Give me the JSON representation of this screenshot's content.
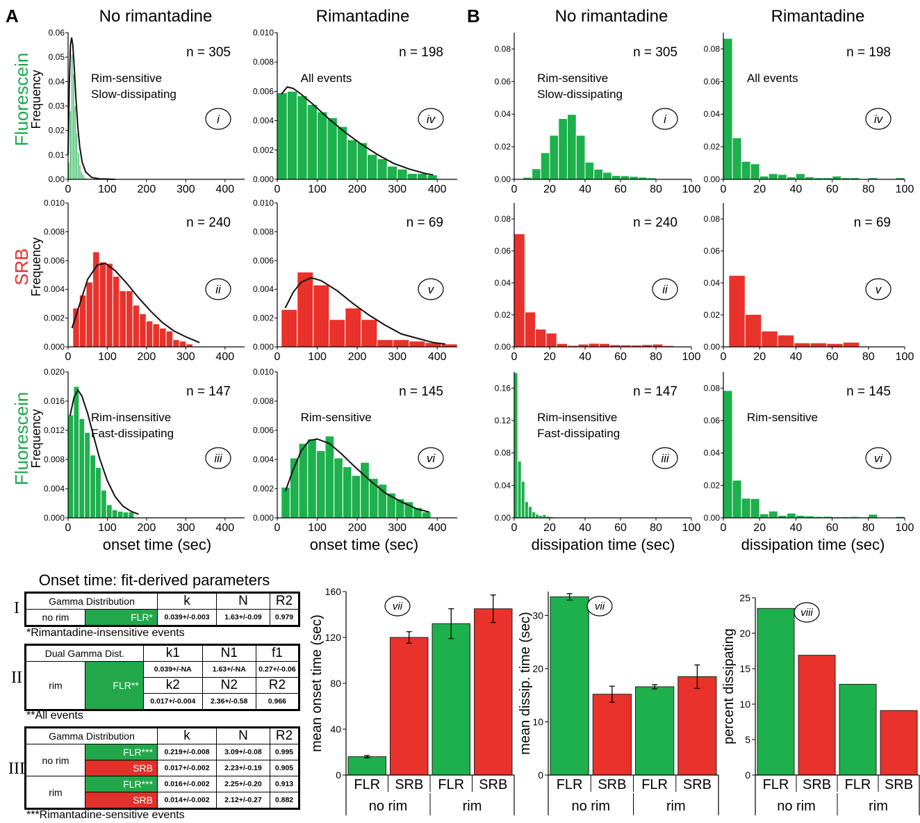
{
  "figure": {
    "panel_letters": [
      "A",
      "B"
    ],
    "column_headers": [
      "No rimantadine",
      "Rimantadine",
      "No rimantadine",
      "Rimantadine"
    ],
    "row_labels": [
      {
        "label": "Fluorescein",
        "color": "#1aa84a"
      },
      {
        "label": "SRB",
        "color": "#e0312a"
      },
      {
        "label": "Fluorescein",
        "color": "#1aa84a"
      }
    ],
    "frequency_label": "Frequency",
    "x_label_onset": "onset time (sec)",
    "x_label_dissipation": "dissipation time (sec)"
  },
  "colors": {
    "green": "#22a84a",
    "red": "#e0312a",
    "bar_green": "#1db04d",
    "bar_red": "#e8322b"
  },
  "chart_data": [
    {
      "type": "bar",
      "id": "A-i",
      "n": "n = 305",
      "roman": "i",
      "annotation": [
        "Rim-sensitive",
        "Slow-dissipating"
      ],
      "color": "green",
      "xlim": [
        0,
        450
      ],
      "xticks": [
        0,
        100,
        200,
        300,
        400
      ],
      "ylim": [
        0,
        0.06
      ],
      "yticks": [
        "0.00",
        "0.01",
        "0.02",
        "0.03",
        "0.04",
        "0.05",
        "0.06"
      ],
      "bin_start": 0,
      "bin_width": 4,
      "values": [
        0.007,
        0.028,
        0.051,
        0.043,
        0.03,
        0.019,
        0.011,
        0.006,
        0.003,
        0.002,
        0.001,
        0.0005
      ],
      "fit": [
        [
          0,
          0.01
        ],
        [
          3,
          0.038
        ],
        [
          6,
          0.055
        ],
        [
          9,
          0.058
        ],
        [
          12,
          0.055
        ],
        [
          16,
          0.045
        ],
        [
          20,
          0.033
        ],
        [
          25,
          0.021
        ],
        [
          30,
          0.013
        ],
        [
          36,
          0.007
        ],
        [
          45,
          0.003
        ],
        [
          60,
          0.0008
        ],
        [
          80,
          0.0002
        ],
        [
          120,
          0
        ]
      ]
    },
    {
      "type": "bar",
      "id": "A-iv",
      "n": "n = 198",
      "roman": "iv",
      "annotation": [
        "All events"
      ],
      "color": "green",
      "xlim": [
        0,
        450
      ],
      "xticks": [
        0,
        100,
        200,
        300,
        400
      ],
      "ylim": [
        0,
        0.01
      ],
      "yticks": [
        "0.000",
        "0.002",
        "0.004",
        "0.006",
        "0.008",
        "0.010"
      ],
      "bin_start": 0,
      "bin_width": 25,
      "values": [
        0.0059,
        0.006,
        0.0057,
        0.0051,
        0.0046,
        0.0042,
        0.0036,
        0.0027,
        0.0025,
        0.0017,
        0.0014,
        0.0009,
        0.0007,
        0.0004,
        0.0004,
        0.0003
      ],
      "fit": [
        [
          10,
          0.0058
        ],
        [
          25,
          0.0063
        ],
        [
          40,
          0.0062
        ],
        [
          60,
          0.0058
        ],
        [
          90,
          0.0051
        ],
        [
          130,
          0.0041
        ],
        [
          170,
          0.0032
        ],
        [
          210,
          0.0024
        ],
        [
          250,
          0.0017
        ],
        [
          290,
          0.0011
        ],
        [
          330,
          0.0007
        ],
        [
          370,
          0.0004
        ],
        [
          390,
          0.0003
        ]
      ]
    },
    {
      "type": "bar",
      "id": "A-ii",
      "n": "n = 240",
      "roman": "ii",
      "annotation": [],
      "color": "red",
      "xlim": [
        0,
        450
      ],
      "xticks": [
        0,
        100,
        200,
        300,
        400
      ],
      "ylim": [
        0,
        0.01
      ],
      "yticks": [
        "0.000",
        "0.002",
        "0.004",
        "0.006",
        "0.008",
        "0.010"
      ],
      "bin_start": 12,
      "bin_width": 17,
      "values": [
        0.0027,
        0.0036,
        0.0045,
        0.0066,
        0.0059,
        0.0058,
        0.0049,
        0.0039,
        0.0039,
        0.0029,
        0.0023,
        0.0018,
        0.0016,
        0.0013,
        0.0011,
        0.0005,
        0.0004,
        0.0002
      ],
      "fit": [
        [
          10,
          0.0013
        ],
        [
          30,
          0.003
        ],
        [
          50,
          0.0047
        ],
        [
          75,
          0.0057
        ],
        [
          95,
          0.0058
        ],
        [
          120,
          0.0053
        ],
        [
          150,
          0.0044
        ],
        [
          180,
          0.0034
        ],
        [
          210,
          0.0025
        ],
        [
          240,
          0.0017
        ],
        [
          270,
          0.0011
        ],
        [
          300,
          0.0007
        ],
        [
          335,
          0.0003
        ]
      ]
    },
    {
      "type": "bar",
      "id": "A-v",
      "n": "n = 69",
      "roman": "v",
      "annotation": [],
      "color": "red",
      "xlim": [
        0,
        450
      ],
      "xticks": [
        0,
        100,
        200,
        300,
        400
      ],
      "ylim": [
        0,
        0.01
      ],
      "yticks": [
        "0.000",
        "0.002",
        "0.004",
        "0.006",
        "0.008",
        "0.010"
      ],
      "bin_start": 10,
      "bin_width": 40,
      "values": [
        0.0026,
        0.0052,
        0.0043,
        0.0019,
        0.0027,
        0.0019,
        0.0005,
        0.0005,
        0.0004,
        0.0003,
        0.0002
      ],
      "fit": [
        [
          20,
          0.0027
        ],
        [
          40,
          0.0038
        ],
        [
          60,
          0.0045
        ],
        [
          85,
          0.0048
        ],
        [
          110,
          0.0046
        ],
        [
          150,
          0.0039
        ],
        [
          190,
          0.003
        ],
        [
          230,
          0.0022
        ],
        [
          270,
          0.0015
        ],
        [
          310,
          0.0009
        ],
        [
          350,
          0.0006
        ],
        [
          390,
          0.0003
        ],
        [
          420,
          0.0002
        ]
      ]
    },
    {
      "type": "bar",
      "id": "A-iii",
      "n": "n = 147",
      "roman": "iii",
      "annotation": [
        "Rim-insensitive",
        "Fast-dissipating"
      ],
      "color": "green",
      "xlim": [
        0,
        450
      ],
      "xticks": [
        0,
        100,
        200,
        300,
        400
      ],
      "ylim": [
        0,
        0.02
      ],
      "yticks": [
        "0.000",
        "0.004",
        "0.008",
        "0.012",
        "0.016",
        "0.020"
      ],
      "bin_start": 0,
      "bin_width": 14,
      "values": [
        0.0141,
        0.018,
        0.0136,
        0.0117,
        0.0086,
        0.0069,
        0.0038,
        0.0018,
        0.0011,
        0.0009,
        0.0008,
        0.0008
      ],
      "fit": [
        [
          5,
          0.014
        ],
        [
          15,
          0.0165
        ],
        [
          25,
          0.0175
        ],
        [
          35,
          0.0167
        ],
        [
          50,
          0.0143
        ],
        [
          65,
          0.0112
        ],
        [
          80,
          0.0082
        ],
        [
          100,
          0.0051
        ],
        [
          120,
          0.0029
        ],
        [
          140,
          0.0016
        ],
        [
          160,
          0.0009
        ],
        [
          180,
          0.0005
        ]
      ]
    },
    {
      "type": "bar",
      "id": "A-vi",
      "n": "n = 145",
      "roman": "vi",
      "annotation": [
        "Rim-sensitive"
      ],
      "color": "green",
      "xlim": [
        0,
        450
      ],
      "xticks": [
        0,
        100,
        200,
        300,
        400
      ],
      "ylim": [
        0,
        0.01
      ],
      "yticks": [
        "0.000",
        "0.002",
        "0.004",
        "0.006",
        "0.008",
        "0.010"
      ],
      "bin_start": 10,
      "bin_width": 22,
      "values": [
        0.0021,
        0.0041,
        0.0051,
        0.0054,
        0.0046,
        0.0056,
        0.0041,
        0.0035,
        0.0029,
        0.0038,
        0.0027,
        0.0023,
        0.0017,
        0.0013,
        0.0011,
        0.0007,
        0.0004
      ],
      "fit": [
        [
          20,
          0.0018
        ],
        [
          40,
          0.0033
        ],
        [
          60,
          0.0046
        ],
        [
          80,
          0.0053
        ],
        [
          100,
          0.0054
        ],
        [
          130,
          0.0051
        ],
        [
          160,
          0.0044
        ],
        [
          190,
          0.0036
        ],
        [
          230,
          0.0026
        ],
        [
          270,
          0.0017
        ],
        [
          310,
          0.0011
        ],
        [
          350,
          0.0006
        ],
        [
          380,
          0.0004
        ]
      ]
    },
    {
      "type": "bar",
      "id": "B-i",
      "n": "n = 305",
      "roman": "i",
      "annotation": [
        "Rim-sensitive",
        "Slow-dissipating"
      ],
      "color": "green",
      "xlim": [
        0,
        100
      ],
      "xticks": [
        0,
        20,
        40,
        60,
        80,
        100
      ],
      "ylim": [
        0,
        0.09
      ],
      "yticks": [
        "0.00",
        "0.02",
        "0.04",
        "0.06",
        "0.08"
      ],
      "bin_start": 5,
      "bin_width": 5,
      "values": [
        0.0012,
        0.0065,
        0.0163,
        0.027,
        0.0373,
        0.0398,
        0.027,
        0.0105,
        0.0062,
        0.0043,
        0.0023,
        0.0022,
        0.0018,
        0.0013,
        0.0009
      ],
      "fit": []
    },
    {
      "type": "bar",
      "id": "B-iv",
      "n": "n = 198",
      "roman": "iv",
      "annotation": [
        "All events"
      ],
      "color": "green",
      "xlim": [
        0,
        100
      ],
      "xticks": [
        0,
        20,
        40,
        60,
        80,
        100
      ],
      "ylim": [
        0,
        0.09
      ],
      "yticks": [
        "0.00",
        "0.02",
        "0.04",
        "0.06",
        "0.08"
      ],
      "bin_start": 0,
      "bin_width": 5,
      "values": [
        0.0865,
        0.0255,
        0.011,
        0.0095,
        0.002,
        0.0035,
        0.003,
        0.0015,
        0.0035,
        0.0015,
        0.001,
        0.001,
        0.002,
        0.001,
        0.001,
        0.0,
        0.001,
        0.0,
        0.0,
        0.001
      ],
      "fit": []
    },
    {
      "type": "bar",
      "id": "B-ii",
      "n": "n = 240",
      "roman": "ii",
      "annotation": [],
      "color": "red",
      "xlim": [
        0,
        100
      ],
      "xticks": [
        0,
        20,
        40,
        60,
        80,
        100
      ],
      "ylim": [
        0,
        0.09
      ],
      "yticks": [
        "0.00",
        "0.02",
        "0.04",
        "0.06",
        "0.08"
      ],
      "bin_start": 0,
      "bin_width": 6,
      "values": [
        0.0707,
        0.0218,
        0.0111,
        0.0086,
        0.0021,
        0.0009,
        0.0017,
        0.0022,
        0.0021,
        0.0013,
        0.0012,
        0.0011,
        0.0014,
        0.0017,
        0.0008,
        0.0003
      ],
      "fit": []
    },
    {
      "type": "bar",
      "id": "B-v",
      "n": "n = 69",
      "roman": "v",
      "annotation": [],
      "color": "red",
      "xlim": [
        0,
        100
      ],
      "xticks": [
        0,
        20,
        40,
        60,
        80,
        100
      ],
      "ylim": [
        0,
        0.09
      ],
      "yticks": [
        "0.00",
        "0.02",
        "0.04",
        "0.06",
        "0.08"
      ],
      "bin_start": 3,
      "bin_width": 9,
      "values": [
        0.0447,
        0.0203,
        0.0099,
        0.0074,
        0.0025,
        0.0025,
        0.0021,
        0.0029
      ],
      "fit": []
    },
    {
      "type": "bar",
      "id": "B-iii",
      "n": "n = 147",
      "roman": "iii",
      "annotation": [
        "Rim-insensitive",
        "Fast-dissipating"
      ],
      "color": "green",
      "xlim": [
        0,
        100
      ],
      "xticks": [
        0,
        20,
        40,
        60,
        80,
        100
      ],
      "ylim": [
        0,
        0.18
      ],
      "yticks": [
        "0.00",
        "0.04",
        "0.08",
        "0.12",
        "0.16"
      ],
      "bin_start": 0,
      "bin_width": 2,
      "values": [
        0.179,
        0.07,
        0.045,
        0.02,
        0.014,
        0.0075,
        0.0045,
        0.003,
        0.004,
        0.002,
        0.0015,
        0.001,
        0.0005,
        0.0005,
        0.0005,
        0.0005
      ],
      "fit": []
    },
    {
      "type": "bar",
      "id": "B-vi",
      "n": "n = 145",
      "roman": "vi",
      "annotation": [
        "Rim-sensitive"
      ],
      "color": "green",
      "xlim": [
        0,
        100
      ],
      "xticks": [
        0,
        20,
        40,
        60,
        80,
        100
      ],
      "ylim": [
        0,
        0.09
      ],
      "yticks": [
        "0.00",
        "0.02",
        "0.04",
        "0.06",
        "0.08"
      ],
      "bin_start": 0,
      "bin_width": 5,
      "values": [
        0.0785,
        0.0232,
        0.0121,
        0.0119,
        0.0025,
        0.0042,
        0.0015,
        0.0029,
        0.0015,
        0.0012,
        0.0008,
        0.0009,
        0.0006,
        0.0007,
        0.0008,
        0.0005,
        0.0022,
        0.0003,
        0.0003,
        0.0008
      ],
      "fit": []
    },
    {
      "type": "bar",
      "id": "C-onset",
      "roman": "vii",
      "ylabel": "mean onset time (sec)",
      "ylim": [
        0,
        160
      ],
      "yticks": [
        "0",
        "40",
        "80",
        "120",
        "160"
      ],
      "categories": [
        "FLR",
        "SRB",
        "FLR",
        "SRB"
      ],
      "groups": [
        "no rim",
        "rim"
      ],
      "colors": [
        "green",
        "red",
        "green",
        "red"
      ],
      "values": [
        16,
        120,
        132,
        145
      ],
      "errors": [
        1,
        5,
        13,
        12
      ]
    },
    {
      "type": "bar",
      "id": "C-dissip",
      "roman": "vii",
      "ylabel": "mean dissip. time (sec)",
      "ylim": [
        0,
        34.5
      ],
      "yticks": [
        "0",
        "10",
        "20",
        "30"
      ],
      "categories": [
        "FLR",
        "SRB",
        "FLR",
        "SRB"
      ],
      "groups": [
        "no rim",
        "rim"
      ],
      "colors": [
        "green",
        "red",
        "green",
        "red"
      ],
      "values": [
        33.5,
        15.2,
        16.6,
        18.5
      ],
      "errors": [
        0.6,
        1.5,
        0.4,
        2.2
      ]
    },
    {
      "type": "bar",
      "id": "C-percent",
      "roman": "viii",
      "ylabel": "percent dissipating",
      "ylim": [
        0,
        25
      ],
      "yticks": [
        "0",
        "5",
        "10",
        "15",
        "20",
        "25"
      ],
      "categories": [
        "FLR",
        "SRB",
        "FLR",
        "SRB"
      ],
      "groups": [
        "no rim",
        "rim"
      ],
      "colors": [
        "green",
        "red",
        "green",
        "red"
      ],
      "values": [
        23.5,
        16.9,
        12.8,
        9.1
      ],
      "errors": [
        0,
        0,
        0,
        0
      ]
    }
  ],
  "params": {
    "title": "Onset time: fit-derived parameters",
    "roman_labels": [
      "I",
      "II",
      "III"
    ],
    "I": {
      "head": [
        "Gamma Distribution",
        "k",
        "N",
        "R2"
      ],
      "row": [
        "no rim",
        "FLR*",
        "0.039+/-0.003",
        "1.63+/-0.09",
        "0.979"
      ],
      "note": "*Rimantadine-insensitive events"
    },
    "II": {
      "head": [
        "Dual Gamma Dist.",
        "k1",
        "N1",
        "f1"
      ],
      "row1": [
        "rim",
        "FLR**",
        "0.039+/-NA",
        "1.63+/-NA",
        "0.27+/-0.06"
      ],
      "mid": [
        "k2",
        "N2",
        "R2"
      ],
      "row2": [
        "0.017+/-0.004",
        "2.36+/-0.58",
        "0.966"
      ],
      "note": "**All events"
    },
    "III": {
      "head": [
        "Gamma Distribution",
        "k",
        "N",
        "R2"
      ],
      "rows": [
        [
          "no rim",
          "FLR***",
          "0.219+/-0.008",
          "3.09+/-0.08",
          "0.995"
        ],
        [
          "",
          "SRB",
          "0.017+/-0.002",
          "2.23+/-0.19",
          "0.905"
        ],
        [
          "rim",
          "FLR***",
          "0.016+/-0.002",
          "2.25+/-0.20",
          "0.913"
        ],
        [
          "",
          "SRB",
          "0.014+/-0.002",
          "2.12+/-0.27",
          "0.882"
        ]
      ],
      "note": "***Rimantadine-sensitive events"
    }
  }
}
